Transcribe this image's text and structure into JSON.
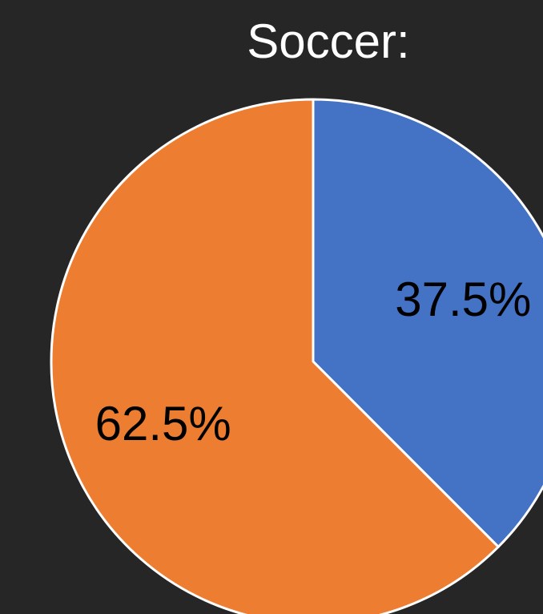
{
  "chart_data": {
    "type": "pie",
    "title": "Soccer:",
    "start_angle_deg": 0,
    "direction": "clockwise",
    "background_color": "#262626",
    "slices": [
      {
        "value": 37.5,
        "label": "37.5%",
        "color": "#4472C4"
      },
      {
        "value": 62.5,
        "label": "62.5%",
        "color": "#ED7D31"
      }
    ]
  }
}
